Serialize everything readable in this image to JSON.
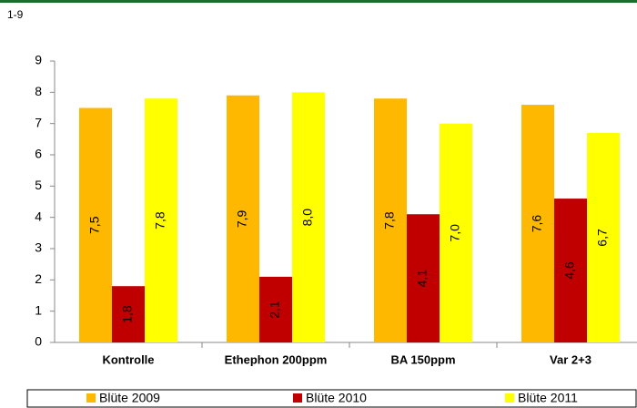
{
  "chart_data": {
    "type": "bar",
    "y_label": "1-9",
    "categories": [
      "Kontrolle",
      "Ethephon 200ppm",
      "BA 150ppm",
      "Var 2+3"
    ],
    "series": [
      {
        "name": "Blüte 2009",
        "color": "#ffb800",
        "values": [
          7.5,
          7.9,
          7.8,
          7.6
        ],
        "value_labels": [
          "7,5",
          "7,9",
          "7,8",
          "7,6"
        ]
      },
      {
        "name": "Blüte 2010",
        "color": "#c00000",
        "values": [
          1.8,
          2.1,
          4.1,
          4.6
        ],
        "value_labels": [
          "1,8",
          "2,1",
          "4,1",
          "4,6"
        ]
      },
      {
        "name": "Blüte 2011",
        "color": "#ffff00",
        "values": [
          7.8,
          8.0,
          7.0,
          6.7
        ],
        "value_labels": [
          "7,8",
          "8,0",
          "7,0",
          "6,7"
        ]
      }
    ],
    "ylim": [
      0,
      9
    ],
    "yticks": [
      0,
      1,
      2,
      3,
      4,
      5,
      6,
      7,
      8,
      9
    ],
    "legend": "bottom"
  }
}
